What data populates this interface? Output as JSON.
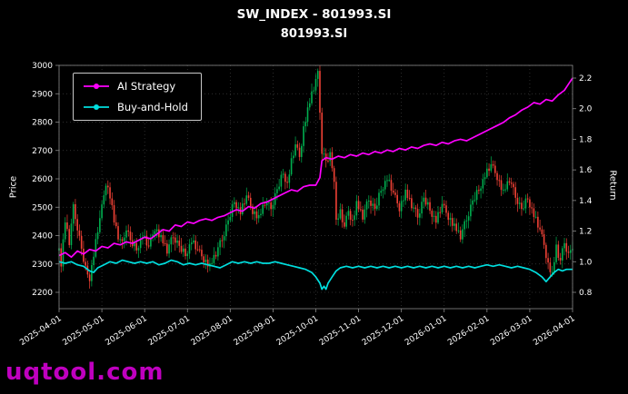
{
  "chart_data": {
    "type": "candlestick",
    "title": "SW_INDEX - 801993.SI",
    "subtitle": "801993.SI",
    "watermark": "uqtool.com",
    "left_axis": {
      "label": "Price",
      "ticks": [
        2200,
        2300,
        2400,
        2500,
        2600,
        2700,
        2800,
        2900,
        3000
      ]
    },
    "right_axis": {
      "label": "Return",
      "ticks": [
        0.8,
        1.0,
        1.2,
        1.4,
        1.6,
        1.8,
        2.0,
        2.2
      ]
    },
    "x_ticks": [
      "2025-04-01",
      "2025-05-01",
      "2025-06-01",
      "2025-07-01",
      "2025-08-01",
      "2025-09-01",
      "2025-10-01",
      "2025-11-01",
      "2025-12-01",
      "2026-01-01",
      "2026-02-01",
      "2026-03-01",
      "2026-04-01"
    ],
    "days": 253,
    "legend_position": "upper-left",
    "grid": true,
    "colors": {
      "background": "#000000",
      "up": "#00b050",
      "down": "#f14135",
      "grid": "#3d3d3d",
      "frame": "#8a8a8a",
      "text": "#ffffff",
      "watermark": "#bf00bf"
    },
    "candle_anchors": [
      [
        0,
        2350
      ],
      [
        1,
        2300
      ],
      [
        3,
        2450
      ],
      [
        5,
        2380
      ],
      [
        7,
        2500
      ],
      [
        9,
        2430
      ],
      [
        11,
        2350
      ],
      [
        13,
        2280
      ],
      [
        15,
        2250
      ],
      [
        17,
        2330
      ],
      [
        19,
        2420
      ],
      [
        21,
        2500
      ],
      [
        23,
        2590
      ],
      [
        25,
        2540
      ],
      [
        27,
        2450
      ],
      [
        29,
        2400
      ],
      [
        31,
        2370
      ],
      [
        33,
        2430
      ],
      [
        35,
        2380
      ],
      [
        38,
        2350
      ],
      [
        41,
        2400
      ],
      [
        44,
        2360
      ],
      [
        47,
        2430
      ],
      [
        50,
        2390
      ],
      [
        53,
        2350
      ],
      [
        56,
        2400
      ],
      [
        59,
        2360
      ],
      [
        62,
        2330
      ],
      [
        65,
        2380
      ],
      [
        68,
        2350
      ],
      [
        71,
        2320
      ],
      [
        74,
        2290
      ],
      [
        77,
        2340
      ],
      [
        80,
        2390
      ],
      [
        83,
        2450
      ],
      [
        86,
        2520
      ],
      [
        89,
        2480
      ],
      [
        92,
        2540
      ],
      [
        95,
        2490
      ],
      [
        98,
        2460
      ],
      [
        101,
        2520
      ],
      [
        104,
        2500
      ],
      [
        107,
        2560
      ],
      [
        110,
        2620
      ],
      [
        112,
        2580
      ],
      [
        114,
        2660
      ],
      [
        116,
        2720
      ],
      [
        118,
        2680
      ],
      [
        120,
        2780
      ],
      [
        122,
        2840
      ],
      [
        124,
        2900
      ],
      [
        126,
        2950
      ],
      [
        127,
        2970
      ],
      [
        128,
        2840
      ],
      [
        129,
        2700
      ],
      [
        131,
        2660
      ],
      [
        133,
        2680
      ],
      [
        135,
        2600
      ],
      [
        136,
        2450
      ],
      [
        138,
        2480
      ],
      [
        140,
        2430
      ],
      [
        142,
        2490
      ],
      [
        144,
        2450
      ],
      [
        146,
        2510
      ],
      [
        149,
        2470
      ],
      [
        152,
        2530
      ],
      [
        155,
        2490
      ],
      [
        158,
        2560
      ],
      [
        161,
        2600
      ],
      [
        164,
        2550
      ],
      [
        167,
        2500
      ],
      [
        170,
        2550
      ],
      [
        173,
        2510
      ],
      [
        176,
        2470
      ],
      [
        179,
        2530
      ],
      [
        182,
        2490
      ],
      [
        185,
        2450
      ],
      [
        188,
        2510
      ],
      [
        191,
        2470
      ],
      [
        194,
        2430
      ],
      [
        197,
        2400
      ],
      [
        200,
        2460
      ],
      [
        203,
        2520
      ],
      [
        206,
        2560
      ],
      [
        209,
        2610
      ],
      [
        212,
        2650
      ],
      [
        215,
        2610
      ],
      [
        218,
        2550
      ],
      [
        221,
        2600
      ],
      [
        224,
        2540
      ],
      [
        227,
        2490
      ],
      [
        230,
        2530
      ],
      [
        233,
        2470
      ],
      [
        236,
        2420
      ],
      [
        238,
        2370
      ],
      [
        240,
        2300
      ],
      [
        242,
        2260
      ],
      [
        244,
        2360
      ],
      [
        246,
        2310
      ],
      [
        248,
        2380
      ],
      [
        250,
        2330
      ],
      [
        252,
        2360
      ]
    ],
    "noise_offsets": [
      0.35,
      -0.6,
      0.8,
      -0.25,
      0.55,
      -0.9,
      0.15,
      0.7,
      -0.45,
      -0.8,
      0.6,
      0.25,
      -0.5,
      0.95,
      -0.15,
      -0.7,
      0.4,
      -0.3,
      0.85,
      -0.55,
      0.1,
      0.65,
      -0.2,
      -0.95
    ],
    "close_noise": 15,
    "wick_amp": 26,
    "series": [
      {
        "name": "AI Strategy",
        "color": "#ff00ff",
        "points": [
          [
            0,
            1.04
          ],
          [
            3,
            1.06
          ],
          [
            6,
            1.03
          ],
          [
            9,
            1.07
          ],
          [
            12,
            1.05
          ],
          [
            15,
            1.08
          ],
          [
            18,
            1.07
          ],
          [
            21,
            1.1
          ],
          [
            24,
            1.09
          ],
          [
            27,
            1.12
          ],
          [
            30,
            1.11
          ],
          [
            33,
            1.13
          ],
          [
            36,
            1.12
          ],
          [
            39,
            1.14
          ],
          [
            42,
            1.16
          ],
          [
            45,
            1.15
          ],
          [
            48,
            1.18
          ],
          [
            51,
            1.21
          ],
          [
            54,
            1.2
          ],
          [
            57,
            1.24
          ],
          [
            60,
            1.23
          ],
          [
            63,
            1.26
          ],
          [
            66,
            1.25
          ],
          [
            69,
            1.27
          ],
          [
            72,
            1.28
          ],
          [
            75,
            1.27
          ],
          [
            78,
            1.29
          ],
          [
            81,
            1.3
          ],
          [
            84,
            1.32
          ],
          [
            87,
            1.34
          ],
          [
            90,
            1.33
          ],
          [
            93,
            1.36
          ],
          [
            96,
            1.35
          ],
          [
            99,
            1.38
          ],
          [
            102,
            1.39
          ],
          [
            105,
            1.41
          ],
          [
            108,
            1.43
          ],
          [
            111,
            1.45
          ],
          [
            114,
            1.47
          ],
          [
            117,
            1.46
          ],
          [
            120,
            1.49
          ],
          [
            123,
            1.5
          ],
          [
            126,
            1.5
          ],
          [
            128,
            1.55
          ],
          [
            129,
            1.66
          ],
          [
            131,
            1.68
          ],
          [
            134,
            1.67
          ],
          [
            137,
            1.69
          ],
          [
            140,
            1.68
          ],
          [
            143,
            1.7
          ],
          [
            146,
            1.69
          ],
          [
            149,
            1.71
          ],
          [
            152,
            1.7
          ],
          [
            155,
            1.72
          ],
          [
            158,
            1.71
          ],
          [
            161,
            1.73
          ],
          [
            164,
            1.72
          ],
          [
            167,
            1.74
          ],
          [
            170,
            1.73
          ],
          [
            173,
            1.75
          ],
          [
            176,
            1.74
          ],
          [
            179,
            1.76
          ],
          [
            182,
            1.77
          ],
          [
            185,
            1.76
          ],
          [
            188,
            1.78
          ],
          [
            191,
            1.77
          ],
          [
            194,
            1.79
          ],
          [
            197,
            1.8
          ],
          [
            200,
            1.79
          ],
          [
            203,
            1.81
          ],
          [
            206,
            1.83
          ],
          [
            209,
            1.85
          ],
          [
            212,
            1.87
          ],
          [
            215,
            1.89
          ],
          [
            218,
            1.91
          ],
          [
            221,
            1.94
          ],
          [
            224,
            1.96
          ],
          [
            227,
            1.99
          ],
          [
            230,
            2.01
          ],
          [
            233,
            2.04
          ],
          [
            236,
            2.03
          ],
          [
            239,
            2.06
          ],
          [
            242,
            2.05
          ],
          [
            245,
            2.09
          ],
          [
            248,
            2.12
          ],
          [
            250,
            2.16
          ],
          [
            252,
            2.2
          ]
        ]
      },
      {
        "name": "Buy-and-Hold",
        "color": "#00dede",
        "points": [
          [
            0,
            1.0
          ],
          [
            3,
            0.99
          ],
          [
            6,
            1.0
          ],
          [
            9,
            0.98
          ],
          [
            12,
            0.97
          ],
          [
            15,
            0.94
          ],
          [
            17,
            0.93
          ],
          [
            19,
            0.96
          ],
          [
            22,
            0.98
          ],
          [
            25,
            1.0
          ],
          [
            28,
            0.99
          ],
          [
            31,
            1.01
          ],
          [
            34,
            1.0
          ],
          [
            37,
            0.99
          ],
          [
            40,
            1.0
          ],
          [
            43,
            0.99
          ],
          [
            46,
            1.0
          ],
          [
            49,
            0.98
          ],
          [
            52,
            0.99
          ],
          [
            55,
            1.01
          ],
          [
            58,
            1.0
          ],
          [
            61,
            0.98
          ],
          [
            64,
            0.99
          ],
          [
            67,
            0.98
          ],
          [
            70,
            0.99
          ],
          [
            73,
            0.98
          ],
          [
            76,
            0.97
          ],
          [
            79,
            0.96
          ],
          [
            82,
            0.98
          ],
          [
            85,
            1.0
          ],
          [
            88,
            0.99
          ],
          [
            91,
            1.0
          ],
          [
            94,
            0.99
          ],
          [
            97,
            1.0
          ],
          [
            100,
            0.99
          ],
          [
            103,
            0.99
          ],
          [
            106,
            1.0
          ],
          [
            109,
            0.99
          ],
          [
            112,
            0.98
          ],
          [
            115,
            0.97
          ],
          [
            118,
            0.96
          ],
          [
            121,
            0.95
          ],
          [
            124,
            0.93
          ],
          [
            126,
            0.9
          ],
          [
            128,
            0.86
          ],
          [
            129,
            0.82
          ],
          [
            130,
            0.84
          ],
          [
            131,
            0.82
          ],
          [
            132,
            0.86
          ],
          [
            134,
            0.9
          ],
          [
            136,
            0.94
          ],
          [
            138,
            0.96
          ],
          [
            141,
            0.97
          ],
          [
            144,
            0.96
          ],
          [
            147,
            0.97
          ],
          [
            150,
            0.96
          ],
          [
            153,
            0.97
          ],
          [
            156,
            0.96
          ],
          [
            159,
            0.97
          ],
          [
            162,
            0.96
          ],
          [
            165,
            0.97
          ],
          [
            168,
            0.96
          ],
          [
            171,
            0.97
          ],
          [
            174,
            0.96
          ],
          [
            177,
            0.97
          ],
          [
            180,
            0.96
          ],
          [
            183,
            0.97
          ],
          [
            186,
            0.96
          ],
          [
            189,
            0.97
          ],
          [
            192,
            0.96
          ],
          [
            195,
            0.97
          ],
          [
            198,
            0.96
          ],
          [
            201,
            0.97
          ],
          [
            204,
            0.96
          ],
          [
            207,
            0.97
          ],
          [
            210,
            0.98
          ],
          [
            213,
            0.97
          ],
          [
            216,
            0.98
          ],
          [
            219,
            0.97
          ],
          [
            222,
            0.96
          ],
          [
            225,
            0.97
          ],
          [
            228,
            0.96
          ],
          [
            231,
            0.95
          ],
          [
            234,
            0.93
          ],
          [
            237,
            0.9
          ],
          [
            239,
            0.87
          ],
          [
            241,
            0.9
          ],
          [
            243,
            0.93
          ],
          [
            245,
            0.95
          ],
          [
            247,
            0.94
          ],
          [
            249,
            0.95
          ],
          [
            252,
            0.95
          ]
        ]
      }
    ]
  }
}
